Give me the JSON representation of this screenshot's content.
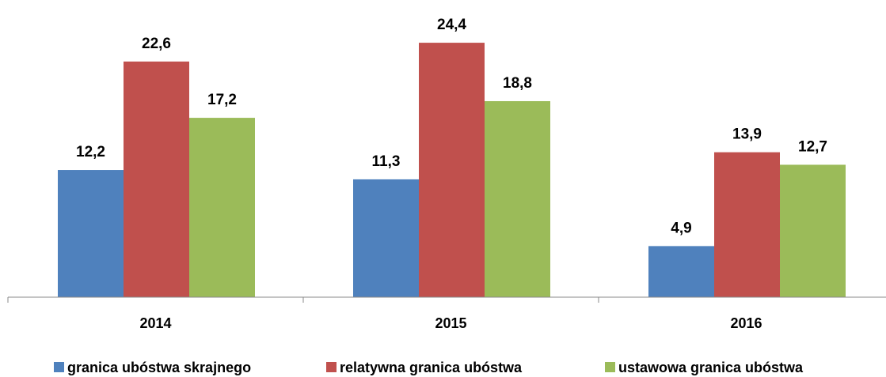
{
  "chart_data": {
    "type": "bar",
    "categories": [
      "2014",
      "2015",
      "2016"
    ],
    "series": [
      {
        "name": "granica ubóstwa skrajnego",
        "color": "#4f81bd",
        "values": [
          12.2,
          11.3,
          4.9
        ],
        "value_labels": [
          "12,2",
          "11,3",
          "4,9"
        ]
      },
      {
        "name": "relatywna granica ubóstwa",
        "color": "#c0504d",
        "values": [
          22.6,
          24.4,
          13.9
        ],
        "value_labels": [
          "22,6",
          "24,4",
          "13,9"
        ]
      },
      {
        "name": "ustawowa granica ubóstwa",
        "color": "#9bbb59",
        "values": [
          17.2,
          18.8,
          12.7
        ],
        "value_labels": [
          "17,2",
          "18,8",
          "12,7"
        ]
      }
    ],
    "ylim": [
      0,
      28.5
    ],
    "legend": "bottom"
  }
}
